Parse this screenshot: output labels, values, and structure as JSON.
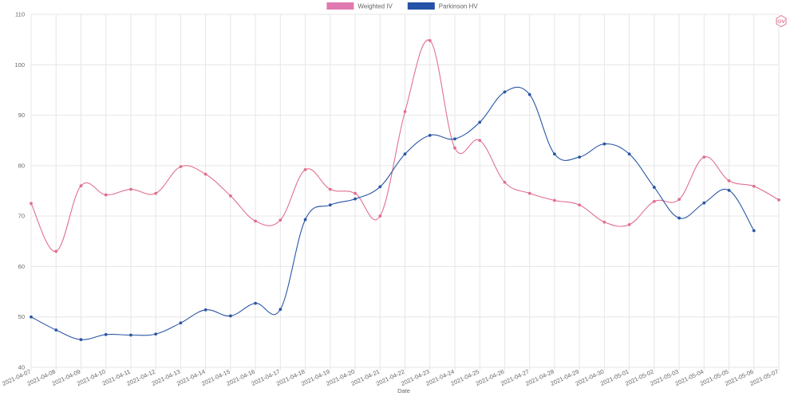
{
  "logo_text": "GV",
  "chart_data": {
    "type": "line",
    "xlabel": "Date",
    "ylabel": "",
    "ylim": [
      40,
      110
    ],
    "yticks": [
      40,
      50,
      60,
      70,
      80,
      90,
      100,
      110
    ],
    "grid": true,
    "legend_position": "top-center",
    "categories": [
      "2021-04-07",
      "2021-04-08",
      "2021-04-09",
      "2021-04-10",
      "2021-04-11",
      "2021-04-12",
      "2021-04-13",
      "2021-04-14",
      "2021-04-15",
      "2021-04-16",
      "2021-04-17",
      "2021-04-18",
      "2021-04-19",
      "2021-04-20",
      "2021-04-21",
      "2021-04-22",
      "2021-04-23",
      "2021-04-24",
      "2021-04-25",
      "2021-04-26",
      "2021-04-27",
      "2021-04-28",
      "2021-04-29",
      "2021-04-30",
      "2021-05-01",
      "2021-05-02",
      "2021-05-03",
      "2021-05-04",
      "2021-05-05",
      "2021-05-06",
      "2021-05-07"
    ],
    "series": [
      {
        "name": "Weighted IV",
        "color": "#e0708e",
        "legend_color": "#e17ab0",
        "values": [
          72.5,
          63,
          76,
          74.2,
          75.3,
          74.5,
          79.8,
          78.3,
          74,
          69,
          69.2,
          79.2,
          75.3,
          74.5,
          70,
          90.7,
          104.8,
          83.5,
          85,
          76.7,
          74.5,
          73.1,
          72.2,
          68.8,
          68.3,
          72.9,
          73.3,
          81.7,
          77,
          75.9,
          73.2
        ]
      },
      {
        "name": "Parkinson HV",
        "color": "#2a56a5",
        "legend_color": "#2352a6",
        "values": [
          50,
          47.4,
          45.5,
          46.5,
          46.4,
          46.6,
          48.8,
          51.4,
          50.2,
          52.7,
          51.5,
          69.3,
          72.2,
          73.4,
          75.8,
          82.3,
          86,
          85.3,
          88.6,
          94.6,
          94.1,
          82.3,
          81.7,
          84.3,
          82.3,
          75.7,
          69.6,
          72.6,
          75.1,
          67.1,
          null
        ]
      }
    ]
  }
}
